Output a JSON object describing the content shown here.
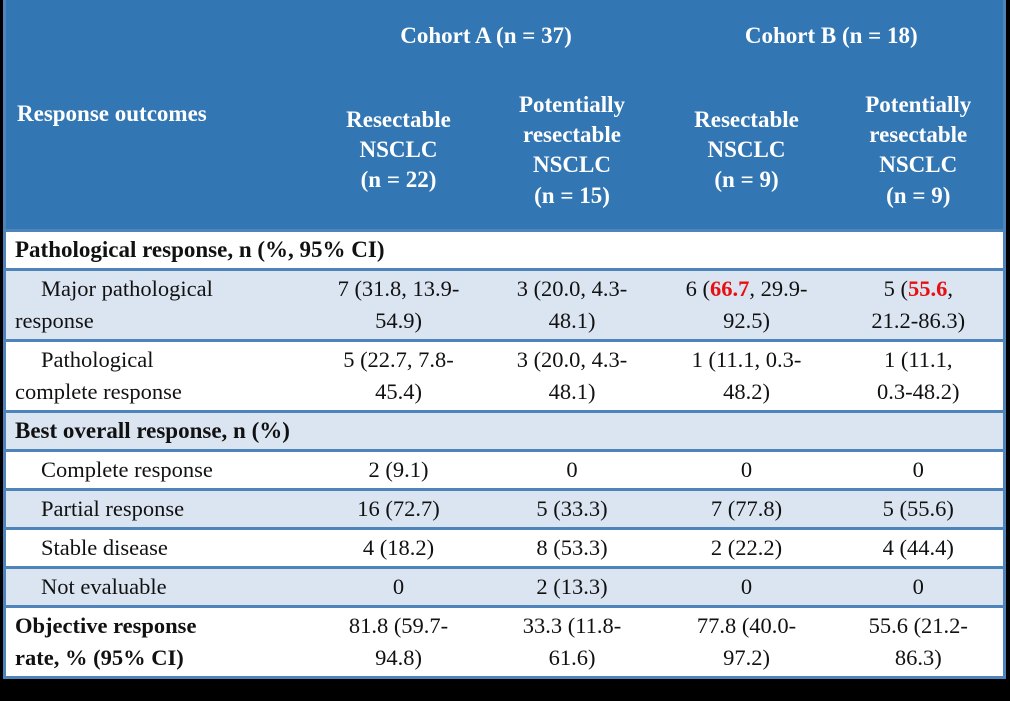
{
  "colors": {
    "header_bg": "#3276b3",
    "shaded_row_bg": "#dbe5f1",
    "table_border": "#4e84ba",
    "header_text": "#ffffff",
    "body_text": "#111111",
    "highlight_red": "#e80f10",
    "page_frame": "#000000"
  },
  "table": {
    "header": {
      "row_label": "Response outcomes",
      "cohorts": [
        {
          "label": "Cohort A (n = 37)"
        },
        {
          "label": "Cohort B (n = 18)"
        }
      ],
      "subcolumns": [
        {
          "label": "Resectable\nNSCLC\n(n = 22)"
        },
        {
          "label": "Potentially\nresectable\nNSCLC\n(n = 15)"
        },
        {
          "label": "Resectable\nNSCLC\n(n = 9)"
        },
        {
          "label": "Potentially\nresectable\nNSCLC\n(n = 9)"
        }
      ]
    },
    "rows": [
      {
        "type": "section",
        "label": "Pathological response, n (%, 95% CI)"
      },
      {
        "type": "data",
        "indent": true,
        "label": "Major pathological\nresponse",
        "values": [
          "7 (31.8, 13.9-\n54.9)",
          "3 (20.0, 4.3-\n48.1)",
          {
            "pre": "6 (",
            "red": "66.7",
            "post": ", 29.9-\n92.5)"
          },
          {
            "pre": "5 (",
            "red": "55.6",
            "post": ",\n21.2-86.3)"
          }
        ]
      },
      {
        "type": "data",
        "indent": true,
        "label": "Pathological\ncomplete response",
        "values": [
          "5 (22.7, 7.8-\n45.4)",
          "3 (20.0, 4.3-\n48.1)",
          "1 (11.1, 0.3-\n48.2)",
          "1 (11.1,\n0.3-48.2)"
        ]
      },
      {
        "type": "section",
        "label": "Best overall response, n (%)"
      },
      {
        "type": "data",
        "indent": true,
        "label": "Complete response",
        "values": [
          "2 (9.1)",
          "0",
          "0",
          "0"
        ]
      },
      {
        "type": "data",
        "indent": true,
        "label": "Partial response",
        "values": [
          "16 (72.7)",
          "5 (33.3)",
          "7 (77.8)",
          "5 (55.6)"
        ]
      },
      {
        "type": "data",
        "indent": true,
        "label": "Stable disease",
        "values": [
          "4 (18.2)",
          "8 (53.3)",
          "2 (22.2)",
          "4 (44.4)"
        ]
      },
      {
        "type": "data",
        "indent": true,
        "label": "Not evaluable",
        "values": [
          "0",
          "2 (13.3)",
          "0",
          "0"
        ]
      },
      {
        "type": "data",
        "indent": false,
        "bold_label": true,
        "label": "Objective response\nrate, % (95% CI)",
        "values": [
          "81.8 (59.7-\n94.8)",
          "33.3 (11.8-\n61.6)",
          "77.8 (40.0-\n97.2)",
          "55.6 (21.2-\n86.3)"
        ]
      }
    ]
  }
}
